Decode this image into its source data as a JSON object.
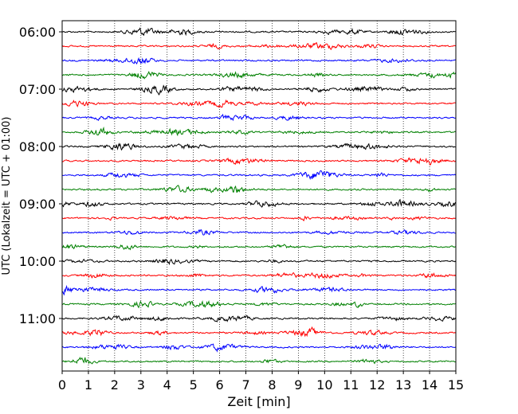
{
  "chart_data": {
    "type": "line",
    "title": "",
    "xlabel": "Zeit  [min]",
    "ylabel": "UTC (Lokalzeit = UTC + 01:00)",
    "xlim": [
      0,
      15
    ],
    "x_ticks": [
      "0",
      "1",
      "2",
      "3",
      "4",
      "5",
      "6",
      "7",
      "8",
      "9",
      "10",
      "11",
      "12",
      "13",
      "14",
      "15"
    ],
    "y_tick_labels": [
      "06:00",
      "07:00",
      "08:00",
      "09:00",
      "10:00",
      "11:00"
    ],
    "trace_start_times": [
      "06:00",
      "06:15",
      "06:30",
      "06:45",
      "07:00",
      "07:15",
      "07:30",
      "07:45",
      "08:00",
      "08:15",
      "08:30",
      "08:45",
      "09:00",
      "09:15",
      "09:30",
      "09:45",
      "10:00",
      "10:15",
      "10:30",
      "10:45",
      "11:00",
      "11:15",
      "11:30",
      "11:45"
    ],
    "trace_minutes": 15,
    "trace_colors": [
      "#000000",
      "#ff0000",
      "#0000ff",
      "#008000"
    ],
    "grid": "vertical dotted at each minute",
    "legend": "none"
  }
}
